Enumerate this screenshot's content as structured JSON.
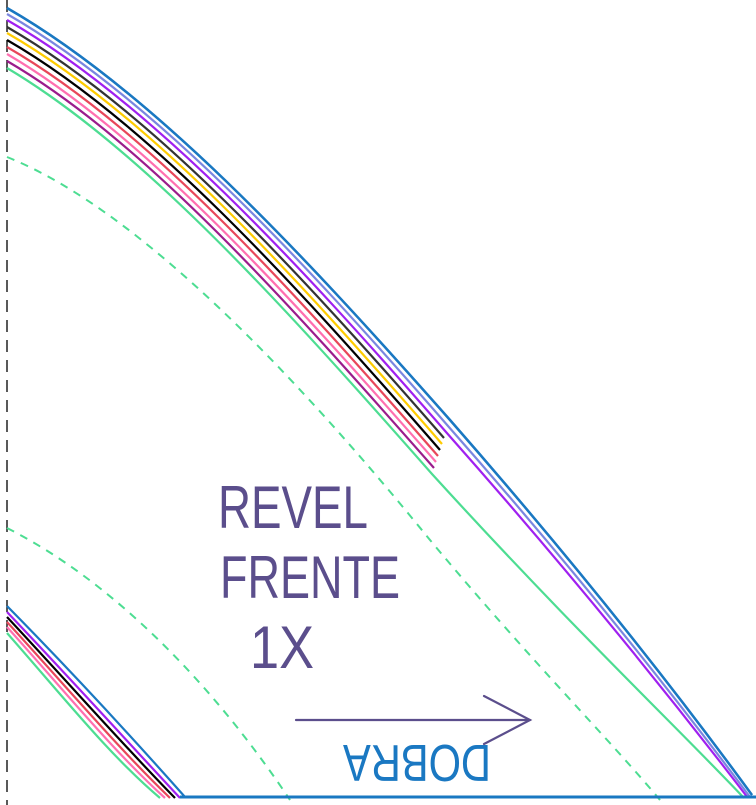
{
  "piece": {
    "title_line1": "REVEL",
    "title_line2": "FRENTE",
    "quantity": "1X",
    "fold_label": "DOBRA"
  },
  "colors": {
    "label": "#5b4e8c",
    "fold_label": "#1a78c2",
    "seam_allowance_dashed": "#4ddd92",
    "fold_line": "#222222",
    "size_lines": [
      "#1a78c2",
      "#7a86e0",
      "#a020f0",
      "#333333",
      "#ffcc00",
      "#000000",
      "#e8475a",
      "#ff6fb0",
      "#9b1c8c",
      "#4ddd92"
    ]
  },
  "icons": {
    "grain_arrow": "arrow-right-icon"
  }
}
